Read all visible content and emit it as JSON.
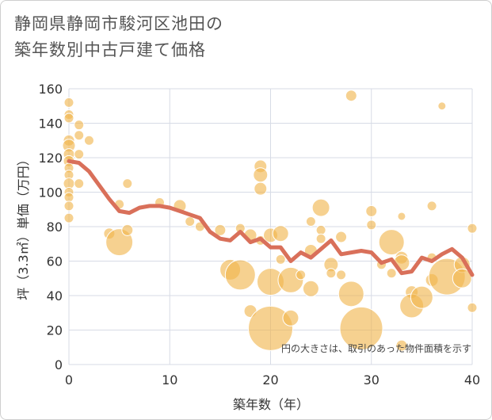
{
  "header": {
    "title_line1": "静岡県静岡市駿河区池田の",
    "title_line2": "築年数別中古戸建て価格"
  },
  "colors": {
    "bubble": "#f0b44c",
    "line": "#d9705a",
    "grid": "#d7dbe6"
  },
  "chart_data": {
    "type": "scatter",
    "title": "静岡県静岡市駿河区池田の築年数別中古戸建て価格",
    "xlabel": "築年数（年）",
    "ylabel": "坪（3.3㎡）単価（万円）",
    "note": "円の大きさは、取引のあった物件面積を示す",
    "xlim": [
      0,
      40
    ],
    "ylim": [
      0,
      160
    ],
    "x_ticks": [
      0,
      10,
      20,
      30,
      40
    ],
    "y_ticks": [
      0,
      20,
      40,
      60,
      80,
      100,
      120,
      140,
      160
    ],
    "grid": true,
    "bubbles": [
      {
        "x": 0,
        "y": 152,
        "s": 6
      },
      {
        "x": 0,
        "y": 145,
        "s": 6
      },
      {
        "x": 0,
        "y": 143,
        "s": 6
      },
      {
        "x": 0,
        "y": 130,
        "s": 7
      },
      {
        "x": 0,
        "y": 127,
        "s": 8
      },
      {
        "x": 0,
        "y": 122,
        "s": 7
      },
      {
        "x": 0,
        "y": 118,
        "s": 7
      },
      {
        "x": 0,
        "y": 114,
        "s": 6
      },
      {
        "x": 0,
        "y": 110,
        "s": 6
      },
      {
        "x": 0,
        "y": 105,
        "s": 7
      },
      {
        "x": 0,
        "y": 100,
        "s": 6
      },
      {
        "x": 0,
        "y": 97,
        "s": 6
      },
      {
        "x": 0,
        "y": 92,
        "s": 6
      },
      {
        "x": 0,
        "y": 85,
        "s": 6
      },
      {
        "x": 1,
        "y": 139,
        "s": 6
      },
      {
        "x": 1,
        "y": 133,
        "s": 6
      },
      {
        "x": 1,
        "y": 122,
        "s": 6
      },
      {
        "x": 1,
        "y": 105,
        "s": 6
      },
      {
        "x": 2,
        "y": 130,
        "s": 6
      },
      {
        "x": 4,
        "y": 76,
        "s": 7
      },
      {
        "x": 5,
        "y": 93,
        "s": 6
      },
      {
        "x": 5,
        "y": 71,
        "s": 17
      },
      {
        "x": 5.8,
        "y": 105,
        "s": 6
      },
      {
        "x": 5.8,
        "y": 78,
        "s": 7
      },
      {
        "x": 9,
        "y": 94,
        "s": 6
      },
      {
        "x": 11,
        "y": 92,
        "s": 8
      },
      {
        "x": 12,
        "y": 83,
        "s": 6
      },
      {
        "x": 13,
        "y": 80,
        "s": 6
      },
      {
        "x": 15,
        "y": 78,
        "s": 7
      },
      {
        "x": 16,
        "y": 55,
        "s": 13
      },
      {
        "x": 17,
        "y": 79,
        "s": 6
      },
      {
        "x": 17,
        "y": 52,
        "s": 19
      },
      {
        "x": 18,
        "y": 75,
        "s": 8
      },
      {
        "x": 18,
        "y": 31,
        "s": 8
      },
      {
        "x": 19,
        "y": 115,
        "s": 8
      },
      {
        "x": 19,
        "y": 110,
        "s": 9
      },
      {
        "x": 19,
        "y": 102,
        "s": 8
      },
      {
        "x": 19,
        "y": 72,
        "s": 6
      },
      {
        "x": 20,
        "y": 75,
        "s": 9
      },
      {
        "x": 20,
        "y": 48,
        "s": 17
      },
      {
        "x": 20,
        "y": 21,
        "s": 28
      },
      {
        "x": 21,
        "y": 76,
        "s": 10
      },
      {
        "x": 21,
        "y": 61,
        "s": 6
      },
      {
        "x": 22,
        "y": 49,
        "s": 16
      },
      {
        "x": 22,
        "y": 27,
        "s": 10
      },
      {
        "x": 23,
        "y": 52,
        "s": 6
      },
      {
        "x": 24,
        "y": 83,
        "s": 6
      },
      {
        "x": 24,
        "y": 66,
        "s": 8
      },
      {
        "x": 24,
        "y": 44,
        "s": 10
      },
      {
        "x": 25,
        "y": 91,
        "s": 11
      },
      {
        "x": 25,
        "y": 78,
        "s": 6
      },
      {
        "x": 25,
        "y": 73,
        "s": 6
      },
      {
        "x": 26,
        "y": 58,
        "s": 9
      },
      {
        "x": 26,
        "y": 53,
        "s": 6
      },
      {
        "x": 27,
        "y": 74,
        "s": 7
      },
      {
        "x": 27,
        "y": 52,
        "s": 6
      },
      {
        "x": 28,
        "y": 156,
        "s": 7
      },
      {
        "x": 28,
        "y": 41,
        "s": 16
      },
      {
        "x": 29,
        "y": 21,
        "s": 27
      },
      {
        "x": 30,
        "y": 89,
        "s": 7
      },
      {
        "x": 30,
        "y": 81,
        "s": 6
      },
      {
        "x": 31,
        "y": 58,
        "s": 6
      },
      {
        "x": 32,
        "y": 71,
        "s": 16
      },
      {
        "x": 32,
        "y": 53,
        "s": 6
      },
      {
        "x": 33,
        "y": 86,
        "s": 5
      },
      {
        "x": 33,
        "y": 62,
        "s": 8
      },
      {
        "x": 33,
        "y": 59,
        "s": 10
      },
      {
        "x": 33,
        "y": 11,
        "s": 7
      },
      {
        "x": 34,
        "y": 42,
        "s": 8
      },
      {
        "x": 34,
        "y": 34,
        "s": 15
      },
      {
        "x": 35,
        "y": 39,
        "s": 14
      },
      {
        "x": 36,
        "y": 92,
        "s": 6
      },
      {
        "x": 36,
        "y": 62,
        "s": 6
      },
      {
        "x": 36,
        "y": 49,
        "s": 8
      },
      {
        "x": 37,
        "y": 150,
        "s": 5
      },
      {
        "x": 37.5,
        "y": 51,
        "s": 23
      },
      {
        "x": 39,
        "y": 58,
        "s": 10
      },
      {
        "x": 39,
        "y": 50,
        "s": 12
      },
      {
        "x": 40,
        "y": 79,
        "s": 6
      },
      {
        "x": 40,
        "y": 33,
        "s": 6
      }
    ],
    "trend": {
      "x": [
        0,
        1,
        2,
        3,
        4,
        5,
        6,
        7,
        8,
        9,
        10,
        11,
        12,
        13,
        14,
        15,
        16,
        17,
        18,
        19,
        20,
        21,
        22,
        23,
        24,
        25,
        26,
        27,
        28,
        29,
        30,
        31,
        32,
        33,
        34,
        35,
        36,
        37,
        38,
        39,
        40
      ],
      "y": [
        118,
        117,
        112,
        104,
        96,
        89,
        88,
        91,
        92,
        92,
        91,
        89,
        87,
        85,
        77,
        73,
        72,
        77,
        71,
        73,
        68,
        68,
        60,
        65,
        62,
        67,
        72,
        64,
        65,
        66,
        65,
        59,
        61,
        53,
        54,
        62,
        60,
        64,
        67,
        62,
        52
      ]
    }
  }
}
